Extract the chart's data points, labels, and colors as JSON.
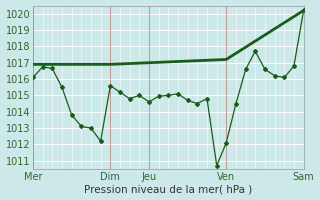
{
  "xlabel": "Pression niveau de la mer( hPa )",
  "bg_color": "#cce8e8",
  "grid_major_color": "#bbdddd",
  "grid_minor_color": "#cceeee",
  "line_color": "#1a5c1a",
  "vline_color": "#bb9999",
  "ylim": [
    1010.5,
    1020.5
  ],
  "yticks": [
    1011,
    1012,
    1013,
    1014,
    1015,
    1016,
    1017,
    1018,
    1019,
    1020
  ],
  "xlim": [
    0,
    1
  ],
  "day_positions": [
    0.0,
    0.286,
    0.429,
    0.714,
    1.0
  ],
  "day_labels": [
    "Mer",
    "Dim",
    "Jeu",
    "Ven",
    "Sam"
  ],
  "trend_x": [
    0.0,
    0.286,
    0.429,
    0.714,
    1.0
  ],
  "trend_y": [
    1016.9,
    1016.9,
    1017.0,
    1017.2,
    1020.2
  ],
  "actual_x": [
    0.0,
    0.036,
    0.071,
    0.107,
    0.143,
    0.179,
    0.214,
    0.25,
    0.286,
    0.321,
    0.357,
    0.393,
    0.429,
    0.464,
    0.5,
    0.536,
    0.571,
    0.607,
    0.643,
    0.679,
    0.714,
    0.75,
    0.786,
    0.821,
    0.857,
    0.893,
    0.929,
    0.964,
    1.0
  ],
  "actual_y": [
    1016.1,
    1016.75,
    1016.65,
    1015.5,
    1013.8,
    1013.1,
    1013.0,
    1012.2,
    1015.6,
    1015.2,
    1014.8,
    1015.0,
    1014.6,
    1014.95,
    1015.0,
    1015.1,
    1014.7,
    1014.5,
    1014.8,
    1010.7,
    1012.1,
    1014.5,
    1016.6,
    1017.7,
    1016.6,
    1016.2,
    1016.1,
    1016.8,
    1020.2
  ],
  "xlabel_fontsize": 7.5,
  "tick_fontsize": 7
}
